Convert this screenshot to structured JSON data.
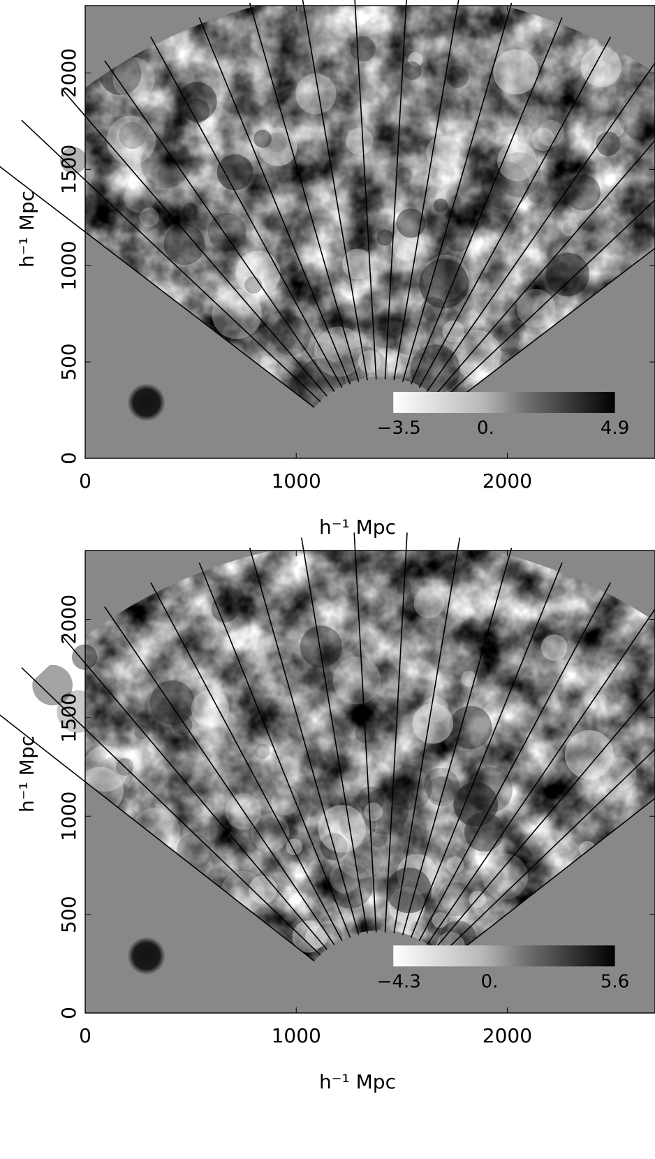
{
  "chart_data": [
    {
      "type": "heatmap",
      "xlabel": "h⁻¹ Mpc",
      "ylabel": "h⁻¹ Mpc",
      "xlim": [
        0,
        2700
      ],
      "ylim": [
        0,
        2350
      ],
      "x_ticks": [
        "0",
        "1000",
        "2000"
      ],
      "y_ticks": [
        "0",
        "500",
        "1000",
        "1500",
        "2000"
      ],
      "wedge": {
        "r_inner": 410,
        "r_outer": 2350,
        "apex_x": 1400,
        "apex_y": 0,
        "angle_half_deg": 50,
        "num_lines": 18
      },
      "beam_marker": {
        "x": 290,
        "y": 290,
        "r": 90
      },
      "colorbar": {
        "min": -3.5,
        "mid": 0,
        "max": 4.9,
        "labels": [
          "−3.5",
          "0.",
          "4.9"
        ]
      },
      "seed": 17
    },
    {
      "type": "heatmap",
      "xlabel": "h⁻¹ Mpc",
      "ylabel": "h⁻¹ Mpc",
      "xlim": [
        0,
        2700
      ],
      "ylim": [
        0,
        2350
      ],
      "x_ticks": [
        "0",
        "1000",
        "2000"
      ],
      "y_ticks": [
        "0",
        "500",
        "1000",
        "1500",
        "2000"
      ],
      "wedge": {
        "r_inner": 410,
        "r_outer": 2350,
        "apex_x": 1400,
        "apex_y": 0,
        "angle_half_deg": 50,
        "num_lines": 18
      },
      "beam_marker": {
        "x": 290,
        "y": 290,
        "r": 90
      },
      "colorbar": {
        "min": -4.3,
        "mid": 0,
        "max": 5.6,
        "labels": [
          "−4.3",
          "0.",
          "5.6"
        ]
      },
      "seed": 91
    }
  ]
}
